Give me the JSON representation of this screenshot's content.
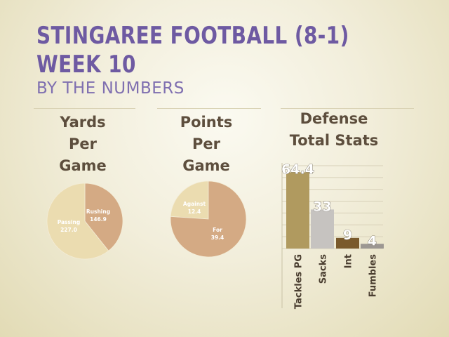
{
  "slide": {
    "title_line1": "STINGAREE FOOTBALL (8-1)",
    "title_line2": "WEEK 10",
    "subtitle": "BY THE NUMBERS"
  },
  "chart_data": [
    {
      "type": "pie",
      "title_lines": [
        "Yards",
        "Per",
        "Game"
      ],
      "slices": [
        {
          "label": "Rushing",
          "value": 146.9,
          "color": "#d4aa84"
        },
        {
          "label": "Passing",
          "value": 227.0,
          "color": "#ebdcb0"
        }
      ]
    },
    {
      "type": "pie",
      "title_lines": [
        "Points",
        "Per",
        "Game"
      ],
      "slices": [
        {
          "label": "Against",
          "value": 12.4,
          "color": "#ebdcb0"
        },
        {
          "label": "For",
          "value": 39.4,
          "color": "#d4aa84"
        }
      ]
    },
    {
      "type": "bar",
      "title_lines": [
        "Defense",
        "Total Stats"
      ],
      "categories": [
        "Tackles PG",
        "Sacks",
        "Int",
        "Fumbles"
      ],
      "values": [
        64.4,
        33,
        9,
        4
      ],
      "data_labels": [
        "64.4",
        "33",
        "9",
        "4"
      ],
      "colors": [
        "#b09a5f",
        "#c6c3c0",
        "#7a5a2c",
        "#9c9792"
      ],
      "ylim": [
        0,
        70
      ],
      "grid": true
    }
  ]
}
